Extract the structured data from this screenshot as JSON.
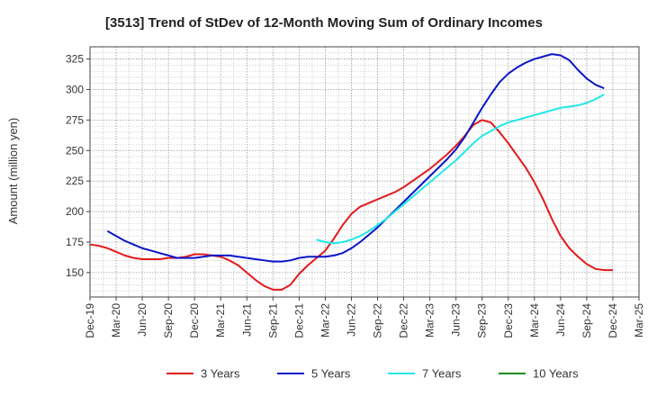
{
  "chart_data": {
    "type": "line",
    "title": "[3513]  Trend of StDev of 12-Month Moving Sum of Ordinary Incomes",
    "xlabel": "",
    "ylabel": "Amount (million yen)",
    "ylim": [
      130,
      335
    ],
    "yticks": [
      150,
      175,
      200,
      225,
      250,
      275,
      300,
      325
    ],
    "x_start": "2019-12",
    "x_end": "2025-03",
    "xticks": [
      "Dec-19",
      "Mar-20",
      "Jun-20",
      "Sep-20",
      "Dec-20",
      "Mar-21",
      "Jun-21",
      "Sep-21",
      "Dec-21",
      "Mar-22",
      "Jun-22",
      "Sep-22",
      "Dec-22",
      "Mar-23",
      "Jun-23",
      "Sep-23",
      "Dec-23",
      "Mar-24",
      "Jun-24",
      "Sep-24",
      "Dec-24",
      "Mar-25"
    ],
    "grid": true,
    "legend_position": "bottom",
    "series": [
      {
        "name": "3 Years",
        "color": "#e31a1c",
        "start": "2019-12",
        "values": [
          173,
          172,
          170,
          167,
          164,
          162,
          161,
          161,
          161,
          162,
          162,
          163,
          165,
          165,
          164,
          163,
          160,
          156,
          150,
          144,
          139,
          136,
          136,
          140,
          149,
          156,
          162,
          168,
          178,
          189,
          198,
          204,
          207,
          210,
          213,
          216,
          220,
          225,
          230,
          235,
          241,
          247,
          254,
          262,
          271,
          275,
          273,
          265,
          256,
          246,
          236,
          224,
          210,
          194,
          180,
          170,
          163,
          157,
          153,
          152,
          152
        ]
      },
      {
        "name": "5 Years",
        "color": "#0a16c8",
        "start": "2020-02",
        "values": [
          184,
          180,
          176,
          173,
          170,
          168,
          166,
          164,
          162,
          162,
          162,
          163,
          164,
          164,
          164,
          163,
          162,
          161,
          160,
          159,
          159,
          160,
          162,
          163,
          163,
          163,
          164,
          166,
          170,
          175,
          181,
          187,
          194,
          201,
          208,
          215,
          222,
          229,
          236,
          243,
          251,
          261,
          273,
          285,
          296,
          306,
          313,
          318,
          322,
          325,
          327,
          329,
          328,
          324,
          316,
          309,
          304,
          301
        ]
      },
      {
        "name": "7 Years",
        "color": "#22e8e8",
        "start": "2022-02",
        "values": [
          177,
          175,
          174,
          175,
          177,
          180,
          184,
          189,
          194,
          200,
          206,
          212,
          218,
          224,
          230,
          236,
          242,
          249,
          256,
          262,
          266,
          270,
          273,
          275,
          277,
          279,
          281,
          283,
          285,
          286,
          287,
          289,
          292,
          296
        ]
      },
      {
        "name": "10 Years",
        "color": "#1a8a1a",
        "start": "2019-12",
        "values": []
      }
    ]
  }
}
